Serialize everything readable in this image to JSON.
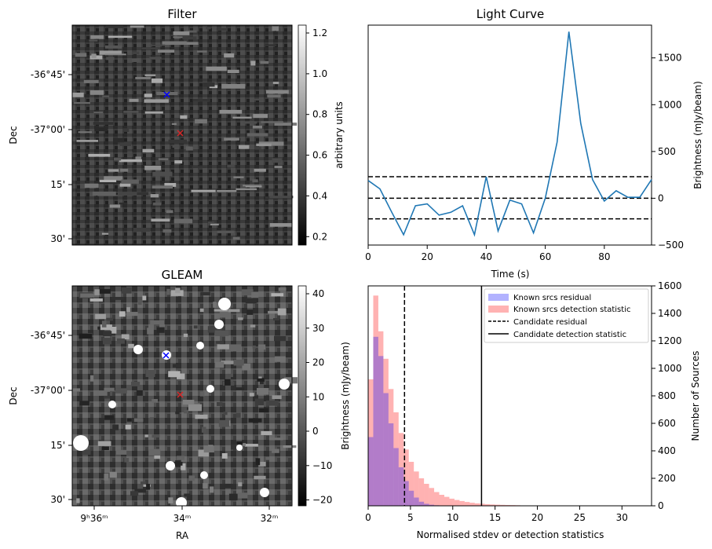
{
  "panels": {
    "filter": {
      "title": "Filter",
      "ylabel": "Dec",
      "dec_ticks": [
        "-36°45'",
        "-37°00'",
        "15'",
        "30'"
      ],
      "colorbar_label": "arbitrary units",
      "colorbar_ticks": [
        "1.2",
        "1.0",
        "0.8",
        "0.6",
        "0.4",
        "0.2"
      ],
      "markers": [
        {
          "name": "blue-cross",
          "color": "#0000ff"
        },
        {
          "name": "red-cross",
          "color": "#d62728"
        }
      ]
    },
    "gleam": {
      "title": "GLEAM",
      "ylabel": "Dec",
      "xlabel": "RA",
      "dec_ticks": [
        "-36°45'",
        "-37°00'",
        "15'",
        "30'"
      ],
      "ra_ticks": [
        "9ʰ36ᵐ",
        "34ᵐ",
        "32ᵐ"
      ],
      "colorbar_label": "Brightness (mJy/beam)",
      "colorbar_ticks": [
        "40",
        "30",
        "20",
        "10",
        "0",
        "−10",
        "−20"
      ]
    }
  },
  "chart_data": [
    {
      "type": "line",
      "title": "Light Curve",
      "xlabel": "Time (s)",
      "ylabel": "Brightness (mJy/beam)",
      "xlim": [
        0,
        96
      ],
      "ylim": [
        -500,
        1850
      ],
      "x_ticks": [
        0,
        20,
        40,
        60,
        80
      ],
      "y_ticks": [
        -500,
        0,
        500,
        1000,
        1500
      ],
      "x": [
        0,
        4,
        8,
        12,
        16,
        20,
        24,
        28,
        32,
        36,
        40,
        44,
        48,
        52,
        56,
        60,
        64,
        68,
        72,
        76,
        80,
        84,
        88,
        92,
        96
      ],
      "series": [
        {
          "values": [
            190,
            100,
            -150,
            -390,
            -80,
            -60,
            -180,
            -150,
            -80,
            -390,
            230,
            -350,
            -20,
            -60,
            -370,
            0,
            600,
            1780,
            800,
            200,
            -30,
            80,
            10,
            10,
            200
          ],
          "color": "#1f77b4"
        }
      ],
      "hlines": [
        230,
        0,
        -220
      ],
      "hline_style": "dashed-black"
    },
    {
      "type": "bar",
      "subtype": "histogram",
      "xlabel": "Normalised stdev or detection statistics",
      "ylabel": "Number of Sources",
      "xlim": [
        0,
        33.5
      ],
      "ylim": [
        0,
        1600
      ],
      "x_ticks": [
        0,
        5,
        10,
        15,
        20,
        25,
        30
      ],
      "y_ticks": [
        0,
        200,
        400,
        600,
        800,
        1000,
        1200,
        1400,
        1600
      ],
      "bin_width": 0.6,
      "series": [
        {
          "name": "Known srcs residual",
          "color": "#0000ff",
          "alpha": 0.3,
          "values": [
            500,
            1230,
            1090,
            820,
            600,
            420,
            280,
            180,
            110,
            60,
            30,
            15,
            8,
            4,
            2,
            1
          ]
        },
        {
          "name": "Known srcs detection statistic",
          "color": "#ff0000",
          "alpha": 0.3,
          "values": [
            920,
            1530,
            1270,
            1070,
            850,
            680,
            530,
            410,
            320,
            250,
            200,
            160,
            130,
            100,
            80,
            65,
            52,
            42,
            35,
            28,
            22,
            18,
            15,
            12,
            10,
            8,
            7,
            6,
            5,
            4,
            3,
            3,
            2,
            2,
            2,
            1,
            1,
            1,
            1,
            1,
            1,
            0,
            0,
            0,
            0,
            0,
            0,
            0,
            0,
            0,
            0,
            0,
            1
          ]
        }
      ],
      "vlines": [
        {
          "name": "Candidate residual",
          "x": 4.3,
          "style": "dashed"
        },
        {
          "name": "Candidate detection statistic",
          "x": 13.4,
          "style": "solid"
        }
      ],
      "legend_position": "top-right"
    }
  ]
}
